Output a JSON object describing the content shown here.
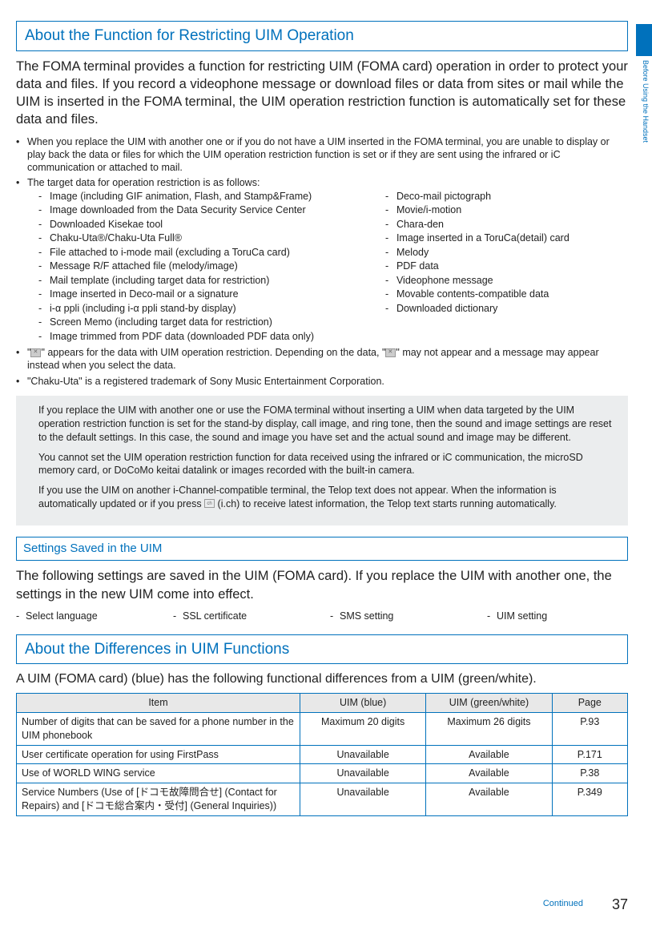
{
  "side_label": "Before Using the Handset",
  "section1": {
    "title": "About the Function for Restricting UIM Operation",
    "intro": "The FOMA terminal provides a function for restricting UIM (FOMA card) operation in order to protect your data and files. If you record a videophone message or download files or data from sites or mail while the UIM is inserted in the FOMA terminal, the UIM operation restriction function is automatically set for these data and files.",
    "bullet1": "When you replace the UIM with another one or if you do not have a UIM inserted in the FOMA terminal, you are unable to display or play back the data or files for which the UIM operation restriction function is set or if they are sent using the infrared or iC communication or attached to mail.",
    "bullet2": "The target data for operation restriction is as follows:",
    "col1": [
      "Image (including GIF animation, Flash, and Stamp&Frame)",
      "Image downloaded from the Data Security Service Center",
      "Downloaded Kisekae tool",
      "Chaku-Uta®/Chaku-Uta Full®",
      "File attached to i-mode mail (excluding a ToruCa card)",
      "Message R/F attached file (melody/image)",
      "Mail template (including target data for restriction)",
      "Image inserted in Deco-mail or a signature",
      "i-α ppli (including i-α ppli stand-by display)",
      "Screen Memo (including target data for restriction)",
      "Image trimmed from PDF data (downloaded PDF data only)"
    ],
    "col2": [
      "Deco-mail pictograph",
      "Movie/i-motion",
      "Chara-den",
      "Image inserted in a ToruCa(detail) card",
      "Melody",
      "PDF data",
      "Videophone message",
      "Movable contents-compatible data",
      "Downloaded dictionary"
    ],
    "bullet3a": "\"",
    "bullet3b": "\" appears for the data with UIM operation restriction. Depending on the data, \"",
    "bullet3c": "\" may not appear and a message may appear instead when you select the data.",
    "bullet4": "\"Chaku-Uta\" is a registered trademark of Sony Music Entertainment Corporation.",
    "notes": [
      "If you replace the UIM with another one or use the FOMA terminal without inserting a UIM when data targeted by the UIM operation restriction function is set for the stand-by display, call image, and ring tone, then the sound and image settings are reset to the default settings. In this case, the sound and image you have set and the actual sound and image may be different.",
      "You cannot set the UIM operation restriction function for data received using the infrared or iC communication, the microSD memory card, or DoCoMo keitai datalink or images recorded with the built-in camera.",
      "If you use the UIM on another i-Channel-compatible terminal, the Telop text does not appear. When the information is automatically updated or if you press  (i.ch) to receive latest information, the Telop text starts running automatically."
    ]
  },
  "section2": {
    "title": "Settings Saved in the UIM",
    "intro": "The following settings are saved in the UIM (FOMA card). If you replace the UIM with another one, the settings in the new UIM come into effect.",
    "items": [
      "Select language",
      "SSL certificate",
      "SMS setting",
      "UIM setting"
    ]
  },
  "section3": {
    "title": "About the Differences in UIM Functions",
    "intro": "A UIM (FOMA card) (blue) has the following functional differences from a UIM (green/white).",
    "headers": [
      "Item",
      "UIM (blue)",
      "UIM (green/white)",
      "Page"
    ],
    "rows": [
      [
        "Number of digits that can be saved for a phone number in the UIM phonebook",
        "Maximum 20 digits",
        "Maximum 26 digits",
        "P.93"
      ],
      [
        "User certificate operation for using FirstPass",
        "Unavailable",
        "Available",
        "P.171"
      ],
      [
        "Use of WORLD WING service",
        "Unavailable",
        "Available",
        "P.38"
      ],
      [
        "Service Numbers (Use of [ドコモ故障問合せ] (Contact for Repairs) and [ドコモ総合案内・受付] (General Inquiries))",
        "Unavailable",
        "Available",
        "P.349"
      ]
    ]
  },
  "footer": {
    "continued": "Continued",
    "page": "37"
  }
}
